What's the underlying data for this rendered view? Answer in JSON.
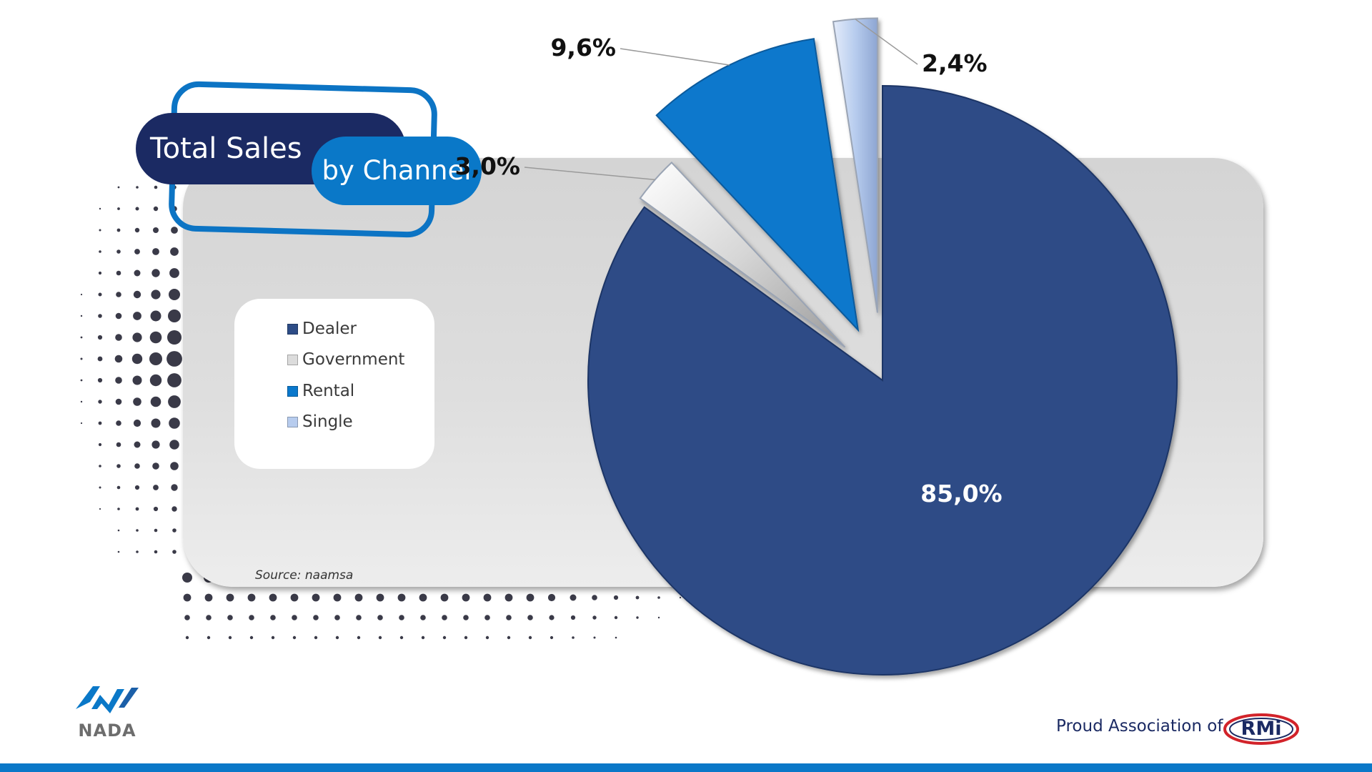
{
  "title": {
    "main": "Total Sales",
    "sub": "by Channel"
  },
  "chart_data": {
    "type": "pie",
    "exploded": true,
    "legend_position": "left",
    "categories": [
      "Dealer",
      "Government",
      "Rental",
      "Single"
    ],
    "values": [
      85.0,
      3.0,
      9.6,
      2.4
    ],
    "data_labels": [
      "85,0%",
      "3,0%",
      "9,6%",
      "2,4%"
    ],
    "colors": [
      "#2d4c86",
      "#dcdcdc",
      "#0a78cc",
      "#b7ccee"
    ]
  },
  "source": "Source: naamsa",
  "footer": {
    "nada_logo_text": "NADA",
    "association_text": "Proud Association of",
    "rmi_logo_text": "RMi"
  },
  "colors": {
    "navy": "#1b2a63",
    "blue": "#0a78c8",
    "panel": "#d8d8d8",
    "dots": "#3a3a48"
  },
  "icons": {
    "nada": "nada-logo-icon",
    "rmi": "rmi-logo-icon"
  }
}
